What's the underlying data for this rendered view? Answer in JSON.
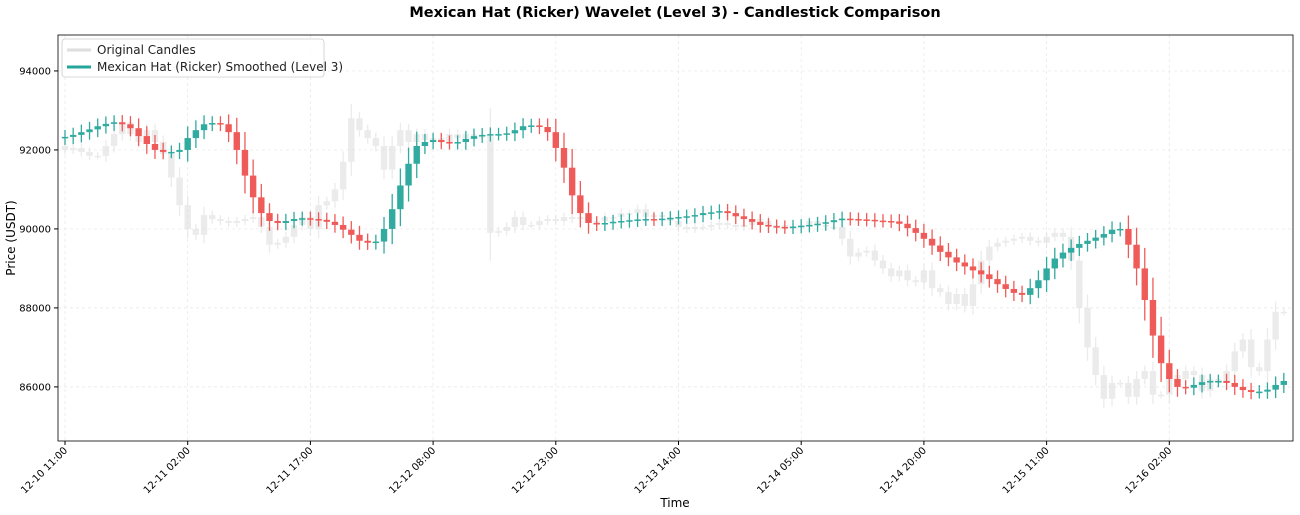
{
  "chart_data": {
    "type": "candlestick",
    "title": "Mexican Hat (Ricker) Wavelet (Level 3) - Candlestick Comparison",
    "xlabel": "Time",
    "ylabel": "Price (USDT)",
    "x_start": "12-10 11:00",
    "x_interval": "1 hour",
    "xtick_labels": [
      "12-10 11:00",
      "12-11 02:00",
      "12-11 17:00",
      "12-12 08:00",
      "12-12 23:00",
      "12-13 14:00",
      "12-14 05:00",
      "12-14 20:00",
      "12-15 11:00",
      "12-16 02:00"
    ],
    "ytick_values": [
      86000,
      88000,
      90000,
      92000,
      94000
    ],
    "ylim": [
      84630,
      94910
    ],
    "grid": true,
    "legend_placement": "top-left",
    "colors": {
      "up": "#26a69a",
      "down": "#ef5350",
      "original": "#dedede"
    },
    "series": [
      {
        "name": "Original Candles",
        "open_first": 92100,
        "close": [
          92000,
          92050,
          91950,
          91850,
          91850,
          92100,
          92400,
          92700,
          92400,
          92200,
          92500,
          92200,
          91900,
          91300,
          90600,
          90000,
          89850,
          90350,
          90250,
          90200,
          90150,
          90200,
          90250,
          90300,
          90050,
          89600,
          89650,
          89800,
          90100,
          90300,
          90000,
          90600,
          90700,
          91000,
          91700,
          92800,
          92500,
          92300,
          92100,
          91500,
          92100,
          92500,
          92200,
          92400,
          92250,
          92300,
          92200,
          92400,
          92300,
          92400,
          92350,
          92350,
          89900,
          89950,
          90050,
          90300,
          90100,
          90100,
          90200,
          90250,
          90200,
          90300,
          90250,
          90300,
          90150,
          90200,
          90300,
          90300,
          90400,
          90400,
          90500,
          90300,
          90350,
          90300,
          90200,
          90050,
          90000,
          90050,
          90050,
          90100,
          90150,
          90100,
          90050,
          90100,
          90250,
          90200,
          90050,
          90100,
          90000,
          90050,
          90100,
          90200,
          90100,
          90050,
          90050,
          89750,
          89300,
          89400,
          89450,
          89200,
          89000,
          88800,
          88950,
          88700,
          88650,
          88950,
          88500,
          88400,
          88100,
          88350,
          88050,
          88600,
          89200,
          89550,
          89650,
          89700,
          89750,
          89800,
          89700,
          89650,
          89800,
          89900,
          89800,
          89200,
          88000,
          87000,
          86300,
          85700,
          86100,
          86100,
          85750,
          86200,
          86400,
          85800,
          85800,
          86300,
          86200,
          86400,
          86300,
          85900,
          86200,
          86100,
          86400,
          86900,
          87200,
          86500,
          86400,
          87200,
          87900,
          87900
        ]
      },
      {
        "name": "Mexican Hat (Ricker) Smoothed (Level 3)",
        "open_first": 92300,
        "close": [
          92330,
          92380,
          92450,
          92520,
          92600,
          92660,
          92700,
          92650,
          92550,
          92350,
          92150,
          92000,
          91950,
          91950,
          92000,
          92300,
          92500,
          92650,
          92680,
          92650,
          92450,
          92000,
          91350,
          90800,
          90400,
          90200,
          90150,
          90200,
          90250,
          90270,
          90250,
          90230,
          90180,
          90100,
          89980,
          89850,
          89700,
          89650,
          89680,
          90000,
          90500,
          91100,
          91650,
          92100,
          92200,
          92250,
          92200,
          92180,
          92200,
          92280,
          92350,
          92380,
          92400,
          92400,
          92420,
          92500,
          92600,
          92620,
          92580,
          92450,
          92050,
          91550,
          90850,
          90400,
          90150,
          90120,
          90150,
          90180,
          90200,
          90220,
          90240,
          90250,
          90240,
          90260,
          90280,
          90300,
          90320,
          90350,
          90400,
          90420,
          90450,
          90400,
          90320,
          90250,
          90180,
          90100,
          90070,
          90050,
          90040,
          90060,
          90080,
          90100,
          90130,
          90170,
          90220,
          90260,
          90250,
          90240,
          90230,
          90210,
          90200,
          90190,
          90130,
          90020,
          89900,
          89750,
          89580,
          89420,
          89280,
          89150,
          89050,
          88950,
          88850,
          88730,
          88600,
          88480,
          88380,
          88330,
          88500,
          88700,
          89000,
          89250,
          89400,
          89520,
          89620,
          89700,
          89780,
          89870,
          89980,
          90000,
          89600,
          89000,
          88200,
          87300,
          86600,
          86200,
          86000,
          85980,
          86050,
          86120,
          86150,
          86150,
          86100,
          86000,
          85920,
          85870,
          85880,
          85930,
          86050,
          86150
        ]
      }
    ]
  }
}
